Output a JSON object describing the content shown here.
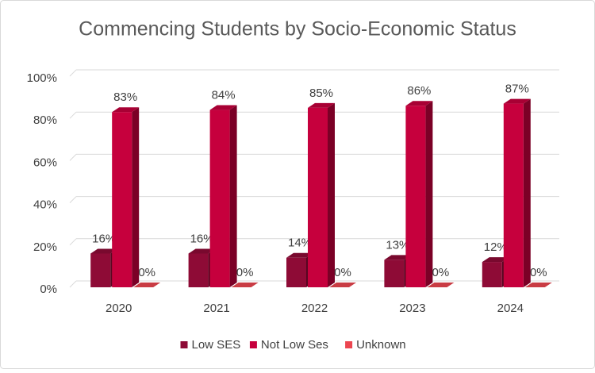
{
  "chart_data": {
    "type": "bar3d",
    "title": "Commencing Students by Socio-Economic Status",
    "categories": [
      "2020",
      "2021",
      "2022",
      "2023",
      "2024"
    ],
    "series": [
      {
        "name": "Low SES",
        "color": "#8e0b36",
        "values": [
          16,
          16,
          14,
          13,
          12
        ],
        "value_labels": [
          "16%",
          "16%",
          "14%",
          "13%",
          "12%"
        ]
      },
      {
        "name": "Not Low Ses",
        "color": "#c6003d",
        "values": [
          83,
          84,
          85,
          86,
          87
        ],
        "value_labels": [
          "83%",
          "84%",
          "85%",
          "86%",
          "87%"
        ]
      },
      {
        "name": "Unknown",
        "color": "#ec4650",
        "values": [
          0,
          0,
          0,
          0,
          0
        ],
        "value_labels": [
          "0%",
          "0%",
          "0%",
          "0%",
          "0%"
        ]
      }
    ],
    "ylim": [
      0,
      100
    ],
    "yticks": [
      {
        "value": 0,
        "label": "0%"
      },
      {
        "value": 20,
        "label": "20%"
      },
      {
        "value": 40,
        "label": "40%"
      },
      {
        "value": 60,
        "label": "60%"
      },
      {
        "value": 80,
        "label": "80%"
      },
      {
        "value": 100,
        "label": "100%"
      }
    ],
    "grid": true,
    "legend": "bottom"
  }
}
